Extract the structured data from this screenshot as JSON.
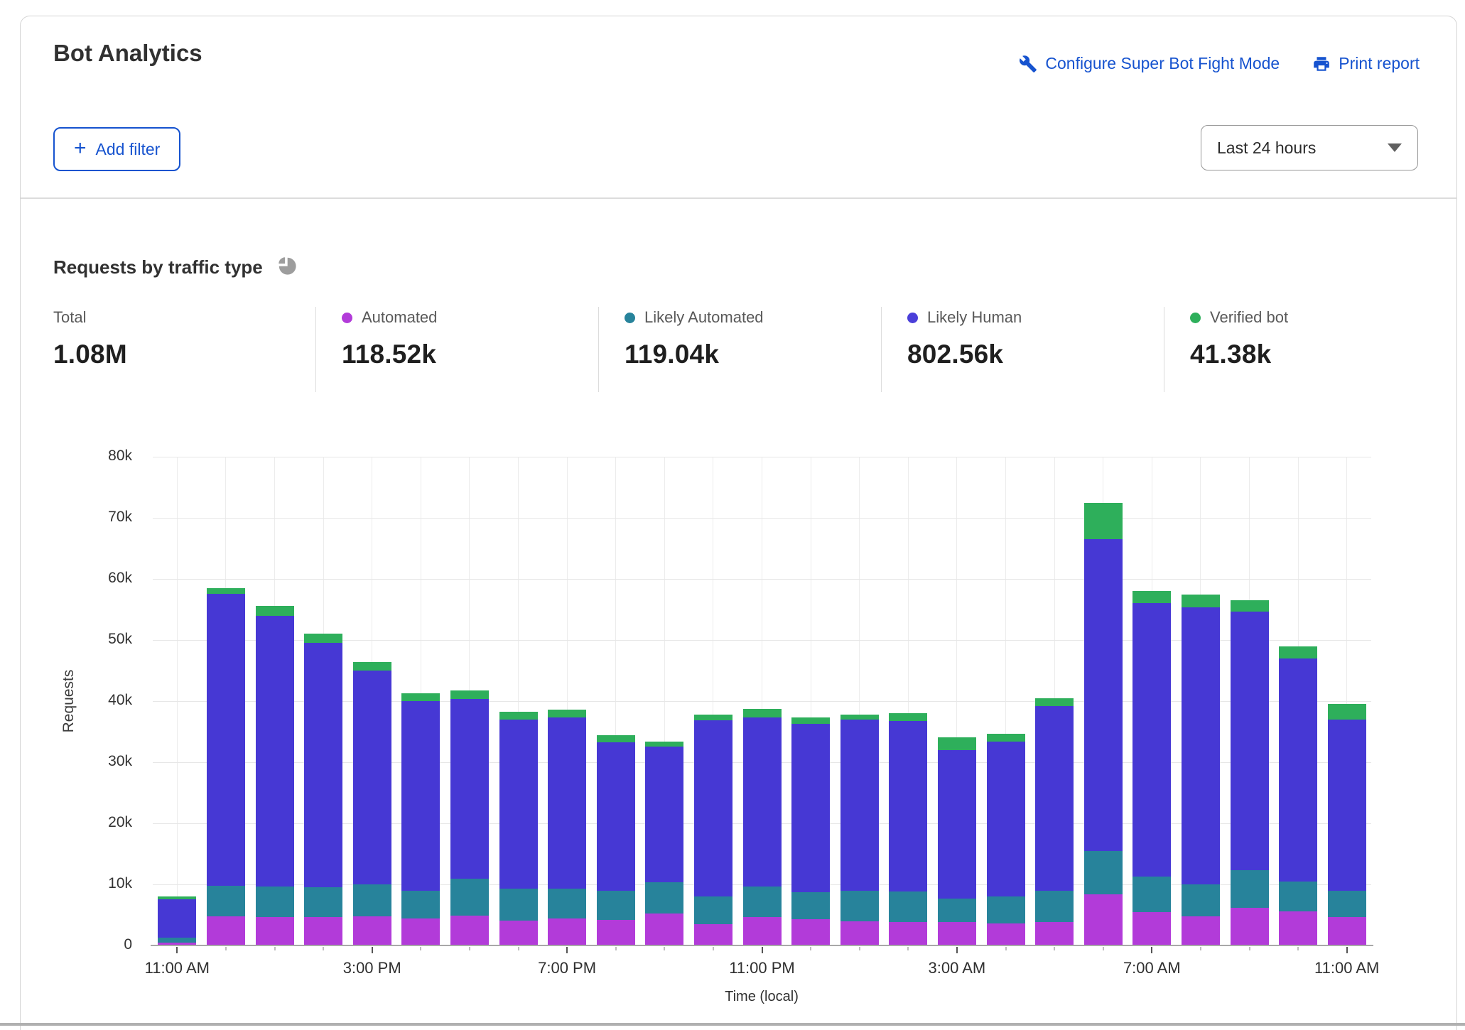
{
  "header": {
    "title": "Bot Analytics",
    "configure_link": "Configure Super Bot Fight Mode",
    "print_link": "Print report",
    "add_filter_plus": "+",
    "add_filter_label": "Add filter",
    "time_range_value": "Last 24 hours"
  },
  "section": {
    "title": "Requests by traffic type"
  },
  "stats": [
    {
      "label": "Total",
      "value": "1.08M",
      "dot_color": null
    },
    {
      "label": "Automated",
      "value": "118.52k",
      "dot_color": "#b23bd9"
    },
    {
      "label": "Likely Automated",
      "value": "119.04k",
      "dot_color": "#27839b"
    },
    {
      "label": "Likely Human",
      "value": "802.56k",
      "dot_color": "#4a3fd9"
    },
    {
      "label": "Verified bot",
      "value": "41.38k",
      "dot_color": "#2eaf5b"
    }
  ],
  "colors": {
    "automated": "#b23bd9",
    "likely_automated": "#27839b",
    "likely_human": "#4638d4",
    "verified_bot": "#2eaf5b",
    "link_blue": "#1653cf"
  },
  "chart_data": {
    "type": "bar",
    "stacked": true,
    "title": "Requests by traffic type",
    "xlabel": "Time (local)",
    "ylabel": "Requests",
    "ylim": [
      0,
      80000
    ],
    "grid": true,
    "legend_position": "top-stats-row",
    "ytick_labels": [
      "0",
      "10k",
      "20k",
      "30k",
      "40k",
      "50k",
      "60k",
      "70k",
      "80k"
    ],
    "xtick_labels": [
      "11:00 AM",
      "3:00 PM",
      "7:00 PM",
      "11:00 PM",
      "3:00 AM",
      "7:00 AM",
      "11:00 AM"
    ],
    "xtick_bar_indices": [
      0,
      4,
      8,
      12,
      16,
      20,
      24
    ],
    "bar_count": 25,
    "series": [
      {
        "name": "Automated",
        "color": "#b23bd9",
        "values": [
          400,
          4800,
          4700,
          4700,
          4800,
          4400,
          4900,
          4100,
          4400,
          4200,
          5200,
          3500,
          4700,
          4300,
          4000,
          3800,
          3800,
          3600,
          3800,
          8400,
          5400,
          4800,
          6200,
          5600,
          4600
        ]
      },
      {
        "name": "Likely Automated",
        "color": "#27839b",
        "values": [
          900,
          5000,
          5000,
          4800,
          5200,
          4600,
          6000,
          5200,
          4900,
          4800,
          5200,
          4500,
          5000,
          4400,
          4900,
          5000,
          3900,
          4400,
          5100,
          7100,
          5900,
          5200,
          6100,
          4900,
          4400
        ]
      },
      {
        "name": "Likely Human",
        "color": "#4638d4",
        "values": [
          6300,
          47700,
          44300,
          40000,
          35000,
          31000,
          29400,
          27700,
          28000,
          24300,
          22100,
          28800,
          27600,
          27600,
          28100,
          27900,
          24300,
          25400,
          30300,
          51000,
          44700,
          45400,
          42400,
          36500,
          28000
        ]
      },
      {
        "name": "Verified bot",
        "color": "#2eaf5b",
        "values": [
          400,
          1000,
          1600,
          1500,
          1400,
          1300,
          1500,
          1300,
          1300,
          1100,
          900,
          1000,
          1400,
          1000,
          800,
          1300,
          2100,
          1300,
          1300,
          5900,
          2000,
          2000,
          1800,
          2000,
          2500
        ]
      }
    ]
  }
}
